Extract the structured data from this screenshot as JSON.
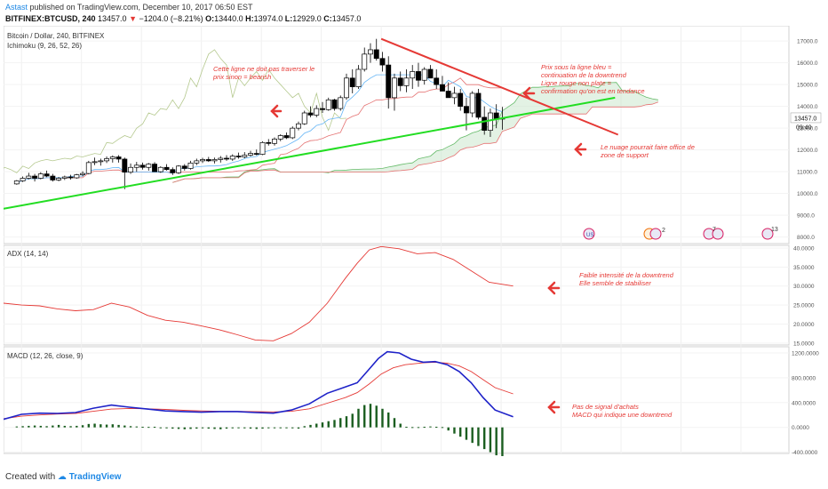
{
  "header": {
    "author": "Astast",
    "published": "published on TradingView.com, December 10, 2017 06:50 EST",
    "symbol": "BITFINEX:BTCUSD, 240",
    "last": "13457.0",
    "change": "−1204.0 (−8.21%)",
    "o_label": "O:",
    "o_value": "13440.0",
    "h_label": "H:",
    "h_value": "13974.0",
    "l_label": "L:",
    "l_value": "12929.0",
    "c_label": "C:",
    "c_value": "13457.0"
  },
  "footer": {
    "created_with": "Created with",
    "brand": "TradingView"
  },
  "colors": {
    "up": "#ffffff",
    "down": "#000000",
    "trend_red": "#e53935",
    "support_green": "#22dd22",
    "cloud": "#66bb6a",
    "ichimoku_lagging": "#b5c98f",
    "ichimoku_base": "#e57373",
    "ichimoku_conv": "#64b5f6",
    "macd": "#1e22c8",
    "signal": "#e53935",
    "hist": "#1b5e20",
    "annotation": "#e53935"
  },
  "chart_data": [
    {
      "type": "candlestick",
      "title": "Bitcoin / Dollar, 240, BITFINEX",
      "subtitle": "Ichimoku (9, 26, 52, 26)",
      "x_ticks": [
        "2",
        "3",
        "4",
        "5",
        "6",
        "7",
        "8",
        "9",
        "10",
        "11",
        "12",
        "13",
        "14"
      ],
      "y_ticks": [
        "8000.0",
        "9000.0",
        "10000.0",
        "11000.0",
        "12000.0",
        "13000.0",
        "14000.0",
        "15000.0",
        "16000.0",
        "17000.0"
      ],
      "ylim": [
        7700,
        17700
      ],
      "xlim": [
        1.7,
        14.8
      ],
      "price_label": "13457.0",
      "price_label_time": "09:40",
      "ohlc": [
        [
          1.92,
          10440,
          10620,
          10400,
          10580
        ],
        [
          2.02,
          10580,
          10780,
          10530,
          10700
        ],
        [
          2.12,
          10700,
          10950,
          10650,
          10800
        ],
        [
          2.22,
          10800,
          10900,
          10550,
          10700
        ],
        [
          2.32,
          10700,
          10980,
          10650,
          10900
        ],
        [
          2.42,
          10900,
          11050,
          10750,
          10800
        ],
        [
          2.52,
          10800,
          10900,
          10550,
          10620
        ],
        [
          2.62,
          10620,
          10760,
          10560,
          10700
        ],
        [
          2.72,
          10700,
          10820,
          10620,
          10760
        ],
        [
          2.82,
          10760,
          10860,
          10640,
          10720
        ],
        [
          2.92,
          10720,
          10900,
          10680,
          10860
        ],
        [
          3.02,
          10860,
          11020,
          10780,
          10920
        ],
        [
          3.12,
          10920,
          11500,
          10880,
          11420
        ],
        [
          3.22,
          11420,
          11650,
          11300,
          11460
        ],
        [
          3.32,
          11460,
          11600,
          11280,
          11500
        ],
        [
          3.42,
          11500,
          11700,
          11400,
          11600
        ],
        [
          3.52,
          11600,
          11750,
          11420,
          11680
        ],
        [
          3.62,
          11680,
          11760,
          11420,
          11580
        ],
        [
          3.72,
          11580,
          11650,
          10200,
          10980
        ],
        [
          3.82,
          10980,
          11380,
          10900,
          11200
        ],
        [
          3.92,
          11200,
          11450,
          11000,
          11300
        ],
        [
          4.02,
          11300,
          11420,
          11100,
          11200
        ],
        [
          4.12,
          11200,
          11400,
          11050,
          11350
        ],
        [
          4.22,
          11350,
          11440,
          11000,
          11000
        ],
        [
          4.32,
          11000,
          11250,
          10950,
          11200
        ],
        [
          4.42,
          11200,
          11350,
          11050,
          11100
        ],
        [
          4.52,
          11100,
          11200,
          10850,
          10950
        ],
        [
          4.62,
          10950,
          11300,
          10900,
          11260
        ],
        [
          4.72,
          11260,
          11350,
          11050,
          11150
        ],
        [
          4.82,
          11150,
          11500,
          11100,
          11400
        ],
        [
          4.92,
          11400,
          11600,
          11300,
          11500
        ],
        [
          5.02,
          11500,
          11640,
          11400,
          11560
        ],
        [
          5.12,
          11560,
          11680,
          11450,
          11500
        ],
        [
          5.22,
          11500,
          11650,
          11380,
          11560
        ],
        [
          5.32,
          11560,
          11720,
          11420,
          11620
        ],
        [
          5.42,
          11620,
          11760,
          11500,
          11580
        ],
        [
          5.52,
          11580,
          11800,
          11500,
          11720
        ],
        [
          5.62,
          11720,
          11880,
          11600,
          11680
        ],
        [
          5.72,
          11680,
          11900,
          11620,
          11760
        ],
        [
          5.82,
          11760,
          11960,
          11700,
          11840
        ],
        [
          5.92,
          11840,
          12020,
          11750,
          11800
        ],
        [
          6.02,
          11800,
          12400,
          11760,
          12340
        ],
        [
          6.12,
          12340,
          12500,
          12200,
          12300
        ],
        [
          6.22,
          12300,
          12580,
          12200,
          12500
        ],
        [
          6.32,
          12500,
          12720,
          12400,
          12660
        ],
        [
          6.42,
          12660,
          12800,
          12500,
          12560
        ],
        [
          6.52,
          12560,
          13080,
          12500,
          13000
        ],
        [
          6.62,
          13000,
          13300,
          12900,
          13200
        ],
        [
          6.72,
          13200,
          13800,
          13150,
          13700
        ],
        [
          6.82,
          13700,
          14000,
          13500,
          13600
        ],
        [
          6.92,
          13600,
          14050,
          13500,
          13900
        ],
        [
          7.02,
          13900,
          14200,
          13700,
          13850
        ],
        [
          7.12,
          13850,
          14400,
          13800,
          14300
        ],
        [
          7.22,
          14300,
          14350,
          13800,
          13900
        ],
        [
          7.32,
          13900,
          14500,
          13800,
          14400
        ],
        [
          7.42,
          14400,
          15500,
          14300,
          15300
        ],
        [
          7.52,
          15300,
          15700,
          14600,
          14900
        ],
        [
          7.62,
          14900,
          15900,
          14800,
          15700
        ],
        [
          7.72,
          15700,
          16700,
          15600,
          16400
        ],
        [
          7.82,
          16400,
          16900,
          16000,
          16600
        ],
        [
          7.92,
          16600,
          17100,
          16100,
          16200
        ],
        [
          8.02,
          16200,
          16500,
          15600,
          15900
        ],
        [
          8.12,
          15900,
          16300,
          13900,
          14400
        ],
        [
          8.22,
          14400,
          15500,
          13800,
          15300
        ],
        [
          8.32,
          15300,
          15600,
          14700,
          14950
        ],
        [
          8.42,
          14950,
          15700,
          14650,
          15300
        ],
        [
          8.52,
          15300,
          15900,
          14800,
          15600
        ],
        [
          8.62,
          15600,
          16000,
          14900,
          15200
        ],
        [
          8.72,
          15200,
          15800,
          15000,
          15700
        ],
        [
          8.82,
          15700,
          15900,
          15400,
          15300
        ],
        [
          8.92,
          15300,
          15700,
          14800,
          15000
        ],
        [
          9.02,
          15000,
          15400,
          14700,
          14700
        ],
        [
          9.12,
          14700,
          15100,
          14400,
          14400
        ],
        [
          9.22,
          14400,
          14900,
          14100,
          14600
        ],
        [
          9.32,
          14600,
          14800,
          13800,
          14000
        ],
        [
          9.42,
          14000,
          14400,
          12900,
          13700
        ],
        [
          9.52,
          13700,
          14700,
          13500,
          14600
        ],
        [
          9.62,
          14600,
          14800,
          13400,
          13500
        ],
        [
          9.72,
          13500,
          14000,
          12700,
          12900
        ],
        [
          9.82,
          12900,
          13900,
          12600,
          13700
        ],
        [
          9.92,
          13700,
          14100,
          13000,
          13440
        ],
        [
          10.02,
          13440,
          13974,
          12929,
          13457
        ]
      ],
      "annotations": [
        {
          "lines": [
            "Cette ligne ne doit pas traverser le",
            "prix sinon = bearish"
          ]
        },
        {
          "lines": [
            "Prix sous la ligne bleu =",
            "continuation de la downtrend",
            "Ligne rouge non plate =",
            "confirmation qu'on est en tendance"
          ]
        },
        {
          "lines": [
            "Le nuage pourrait faire office de",
            "zone de support"
          ]
        }
      ],
      "event_badges": [
        "",
        "2",
        "7",
        "13"
      ]
    },
    {
      "type": "line",
      "title": "ADX (14, 14)",
      "y_ticks": [
        "15.0000",
        "20.0000",
        "25.0000",
        "30.0000",
        "35.0000",
        "40.0000"
      ],
      "ylim": [
        14.5,
        40.7
      ],
      "x": [
        1.7,
        2.0,
        2.3,
        2.6,
        2.9,
        3.2,
        3.5,
        3.8,
        4.1,
        4.4,
        4.7,
        5.0,
        5.3,
        5.6,
        5.9,
        6.2,
        6.5,
        6.8,
        7.1,
        7.4,
        7.6,
        7.8,
        8.0,
        8.3,
        8.6,
        8.9,
        9.2,
        9.5,
        9.8,
        10.2
      ],
      "values": [
        25.5,
        25.0,
        24.8,
        24.0,
        23.5,
        23.8,
        25.5,
        24.5,
        22.3,
        21.0,
        20.5,
        19.5,
        18.5,
        17.2,
        15.8,
        15.6,
        17.5,
        20.5,
        25.5,
        32.0,
        36.0,
        39.5,
        40.4,
        39.8,
        38.5,
        38.8,
        37.0,
        34.0,
        31.0,
        30.0
      ],
      "annotation": [
        "Faible intensité de la downtrend",
        "Elle semble de stabiliser"
      ]
    },
    {
      "type": "line",
      "title": "MACD (12, 26, close, 9)",
      "y_ticks": [
        "-400.0000",
        "0.0000",
        "400.0000",
        "800.0000",
        "1200.0000"
      ],
      "ylim": [
        -420,
        1300
      ],
      "series": [
        {
          "x": [
            1.7,
            2.0,
            2.3,
            2.6,
            2.9,
            3.2,
            3.5,
            3.8,
            4.1,
            4.4,
            4.7,
            5.0,
            5.3,
            5.6,
            5.9,
            6.2,
            6.5,
            6.8,
            7.1,
            7.4,
            7.6,
            7.8,
            7.95,
            8.1,
            8.3,
            8.5,
            8.7,
            8.9,
            9.1,
            9.3,
            9.5,
            9.7,
            9.9,
            10.2
          ],
          "values": [
            130,
            210,
            230,
            225,
            240,
            310,
            360,
            325,
            295,
            265,
            255,
            245,
            255,
            255,
            240,
            230,
            280,
            380,
            550,
            650,
            720,
            940,
            1110,
            1220,
            1200,
            1100,
            1050,
            1060,
            1010,
            900,
            720,
            480,
            280,
            170
          ]
        },
        {
          "x": [
            1.7,
            2.0,
            2.3,
            2.6,
            2.9,
            3.2,
            3.5,
            3.8,
            4.1,
            4.4,
            4.7,
            5.0,
            5.3,
            5.6,
            5.9,
            6.2,
            6.5,
            6.8,
            7.1,
            7.4,
            7.6,
            7.8,
            8.0,
            8.2,
            8.4,
            8.7,
            8.9,
            9.1,
            9.3,
            9.5,
            9.7,
            9.9,
            10.2
          ],
          "values": [
            140,
            180,
            200,
            215,
            225,
            260,
            295,
            305,
            300,
            290,
            275,
            265,
            260,
            258,
            255,
            250,
            260,
            300,
            390,
            480,
            560,
            700,
            860,
            960,
            1010,
            1040,
            1050,
            1035,
            990,
            900,
            770,
            640,
            540
          ]
        }
      ],
      "histogram": {
        "x": [
          1.92,
          2.02,
          2.12,
          2.22,
          2.32,
          2.42,
          2.52,
          2.62,
          2.72,
          2.82,
          2.92,
          3.02,
          3.12,
          3.22,
          3.32,
          3.42,
          3.52,
          3.62,
          3.72,
          3.82,
          3.92,
          4.02,
          4.12,
          4.22,
          4.32,
          4.42,
          4.52,
          4.62,
          4.72,
          4.82,
          4.92,
          5.02,
          5.12,
          5.22,
          5.32,
          5.42,
          5.52,
          5.62,
          5.72,
          5.82,
          5.92,
          6.02,
          6.12,
          6.22,
          6.32,
          6.42,
          6.52,
          6.62,
          6.72,
          6.82,
          6.92,
          7.02,
          7.12,
          7.22,
          7.32,
          7.42,
          7.52,
          7.62,
          7.72,
          7.82,
          7.92,
          8.02,
          8.12,
          8.22,
          8.32,
          8.42,
          8.52,
          8.62,
          8.72,
          8.82,
          8.92,
          9.02,
          9.12,
          9.22,
          9.32,
          9.42,
          9.52,
          9.62,
          9.72,
          9.82,
          9.92,
          10.02
        ],
        "values": [
          15,
          20,
          25,
          30,
          25,
          20,
          30,
          40,
          25,
          20,
          25,
          35,
          55,
          60,
          50,
          45,
          50,
          40,
          30,
          20,
          15,
          10,
          8,
          10,
          -5,
          -15,
          -20,
          -25,
          -30,
          -25,
          -20,
          -15,
          -20,
          -25,
          -30,
          -20,
          -15,
          -10,
          -15,
          -20,
          -25,
          -20,
          -10,
          -10,
          -5,
          -5,
          -15,
          -20,
          20,
          40,
          60,
          80,
          100,
          120,
          150,
          180,
          220,
          300,
          360,
          380,
          350,
          300,
          240,
          150,
          60,
          10,
          5,
          5,
          10,
          15,
          10,
          5,
          -50,
          -100,
          -150,
          -200,
          -250,
          -300,
          -350,
          -400,
          -450,
          -500
        ]
      },
      "annotation": [
        "Pas de signal d'achats",
        "MACD qui indique une downtrend"
      ]
    }
  ]
}
